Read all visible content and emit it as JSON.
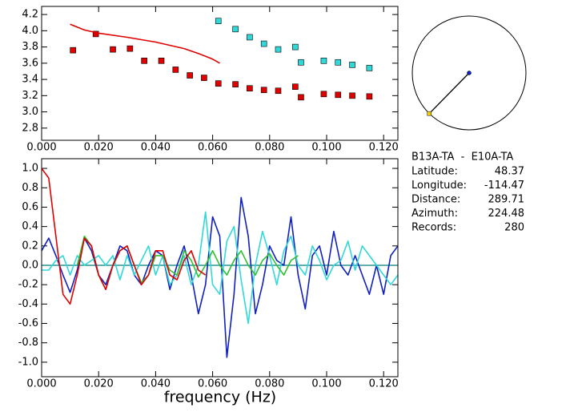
{
  "chart_data": [
    {
      "type": "scatter",
      "xlim": [
        0,
        0.125
      ],
      "ylim": [
        2.65,
        4.3
      ],
      "xticks": [
        {
          "value": 0,
          "label": "0.000"
        },
        {
          "value": 0.02,
          "label": "0.020"
        },
        {
          "value": 0.04,
          "label": "0.040"
        },
        {
          "value": 0.06,
          "label": "0.060"
        },
        {
          "value": 0.08,
          "label": "0.080"
        },
        {
          "value": 0.1,
          "label": "0.100"
        },
        {
          "value": 0.12,
          "label": "0.120"
        }
      ],
      "yticks": [
        {
          "value": 2.8,
          "label": "2.8"
        },
        {
          "value": 3,
          "label": "3.0"
        },
        3.2,
        3.4,
        3.6,
        3.8,
        {
          "value": 4,
          "label": "4.0"
        },
        4.2
      ],
      "series": [
        {
          "color": "#e00000",
          "mode": "markers",
          "x": [
            0.011,
            0.019,
            0.025,
            0.031,
            0.036,
            0.042,
            0.047,
            0.052,
            0.057,
            0.062,
            0.068,
            0.073,
            0.078,
            0.083,
            0.089,
            0.091,
            0.099,
            0.104,
            0.109,
            0.115
          ],
          "values": [
            3.76,
            3.96,
            3.77,
            3.78,
            3.63,
            3.63,
            3.52,
            3.45,
            3.42,
            3.35,
            3.34,
            3.29,
            3.27,
            3.26,
            3.31,
            3.18,
            3.22,
            3.21,
            3.2,
            3.19
          ]
        },
        {
          "color": "#30d8d8",
          "mode": "markers",
          "x": [
            0.062,
            0.068,
            0.073,
            0.078,
            0.083,
            0.089,
            0.091,
            0.099,
            0.104,
            0.109,
            0.115
          ],
          "values": [
            4.12,
            4.02,
            3.92,
            3.84,
            3.77,
            3.8,
            3.61,
            3.63,
            3.61,
            3.58,
            3.54
          ]
        },
        {
          "color": "#e00000",
          "mode": "line",
          "x": [
            0.01,
            0.015,
            0.02,
            0.03,
            0.04,
            0.05,
            0.055,
            0.06,
            0.0625
          ],
          "values": [
            4.08,
            4.01,
            3.97,
            3.92,
            3.86,
            3.78,
            3.72,
            3.65,
            3.6
          ]
        }
      ]
    },
    {
      "type": "line",
      "x_label": "frequency (Hz)",
      "xlim": [
        0,
        0.125
      ],
      "ylim": [
        -1.15,
        1.1
      ],
      "hline": 0,
      "hline_color": "#008080",
      "xticks": [
        {
          "value": 0,
          "label": "0.000"
        },
        {
          "value": 0.02,
          "label": "0.020"
        },
        {
          "value": 0.04,
          "label": "0.040"
        },
        {
          "value": 0.06,
          "label": "0.060"
        },
        {
          "value": 0.08,
          "label": "0.080"
        },
        {
          "value": 0.1,
          "label": "0.100"
        },
        {
          "value": 0.12,
          "label": "0.120"
        }
      ],
      "yticks": [
        {
          "value": -1,
          "label": "-1.0"
        },
        -0.8,
        -0.6,
        -0.4,
        -0.2,
        {
          "value": 0,
          "label": "0.0"
        },
        0.2,
        0.4,
        0.6,
        0.8,
        {
          "value": 1,
          "label": "1.0"
        }
      ],
      "x": [
        0,
        0.0025,
        0.005,
        0.0075,
        0.01,
        0.0125,
        0.015,
        0.0175,
        0.02,
        0.0225,
        0.025,
        0.0275,
        0.03,
        0.0325,
        0.035,
        0.0375,
        0.04,
        0.0425,
        0.045,
        0.0475,
        0.05,
        0.0525,
        0.055,
        0.0575,
        0.06,
        0.0625,
        0.065,
        0.0675,
        0.07,
        0.0725,
        0.075,
        0.0775,
        0.08,
        0.0825,
        0.085,
        0.0875,
        0.09,
        0.0925,
        0.095,
        0.0975,
        0.1,
        0.1025,
        0.105,
        0.1075,
        0.11,
        0.1125,
        0.115,
        0.1175,
        0.12,
        0.1225,
        0.125
      ],
      "series": [
        {
          "color": "#1020c0",
          "values": [
            0.15,
            0.28,
            0.1,
            -0.1,
            -0.28,
            -0.05,
            0.28,
            0.15,
            -0.1,
            -0.2,
            0,
            0.2,
            0.15,
            -0.1,
            -0.2,
            0,
            0.15,
            0.1,
            -0.25,
            0,
            0.2,
            -0.1,
            -0.5,
            -0.2,
            0.5,
            0.3,
            -0.95,
            -0.3,
            0.7,
            0.3,
            -0.5,
            -0.2,
            0.2,
            0.05,
            0,
            0.5,
            -0.1,
            -0.45,
            0.1,
            0.2,
            -0.1,
            0.35,
            0,
            -0.1,
            0.1,
            -0.1,
            -0.3,
            0,
            -0.3,
            0.1,
            0.2
          ]
        },
        {
          "color": "#30d8d8",
          "values": [
            -0.05,
            -0.05,
            0.05,
            0.1,
            -0.1,
            0.1,
            0,
            0.05,
            0.1,
            0,
            0.1,
            -0.15,
            0.1,
            -0.1,
            0.05,
            0.2,
            -0.1,
            0.1,
            -0.2,
            -0.1,
            0.1,
            -0.2,
            0,
            0.55,
            -0.2,
            -0.3,
            0.25,
            0.4,
            -0.15,
            -0.6,
            0,
            0.35,
            0.1,
            -0.2,
            0.15,
            0.3,
            0,
            -0.1,
            0.2,
            0.05,
            -0.15,
            0,
            0.05,
            0.25,
            -0.05,
            0.2,
            0.1,
            0,
            -0.1,
            -0.2,
            -0.1
          ]
        },
        {
          "color": "#30c030",
          "values": [
            null,
            null,
            null,
            null,
            null,
            0,
            0.3,
            0.2,
            -0.1,
            -0.25,
            0,
            0.15,
            0.2,
            0,
            -0.18,
            -0.1,
            0.1,
            0.1,
            -0.05,
            -0.1,
            0.15,
            0.05,
            -0.12,
            0,
            0.15,
            0,
            -0.1,
            0.05,
            0.15,
            0,
            -0.1,
            0.05,
            0.12,
            0,
            -0.1,
            0.05,
            0.1,
            null,
            null,
            null,
            null,
            null,
            null,
            null,
            null,
            null,
            null,
            null,
            null,
            null,
            null
          ]
        },
        {
          "color": "#e00000",
          "values": [
            1,
            0.9,
            0.3,
            -0.3,
            -0.4,
            -0.1,
            0.28,
            0.2,
            -0.1,
            -0.25,
            0,
            0.15,
            0.2,
            0,
            -0.2,
            -0.1,
            0.15,
            0.15,
            -0.1,
            -0.15,
            0.05,
            0.15,
            -0.05,
            -0.1,
            null,
            null,
            null,
            null,
            null,
            null,
            null,
            null,
            null,
            null,
            null,
            null,
            null,
            null,
            null,
            null,
            null,
            null,
            null,
            null,
            null,
            null,
            null,
            null,
            null,
            null,
            null
          ]
        }
      ]
    }
  ],
  "info": {
    "stations": "B13A-TA  -  E10A-TA",
    "azimuth": 224.48,
    "rows": [
      {
        "label": "Latitude:",
        "value": "48.37"
      },
      {
        "label": "Longitude:",
        "value": "-114.47"
      },
      {
        "label": "Distance:",
        "value": "289.71"
      },
      {
        "label": "Azimuth:",
        "value": "224.48"
      },
      {
        "label": "Records:",
        "value": "280"
      }
    ]
  }
}
